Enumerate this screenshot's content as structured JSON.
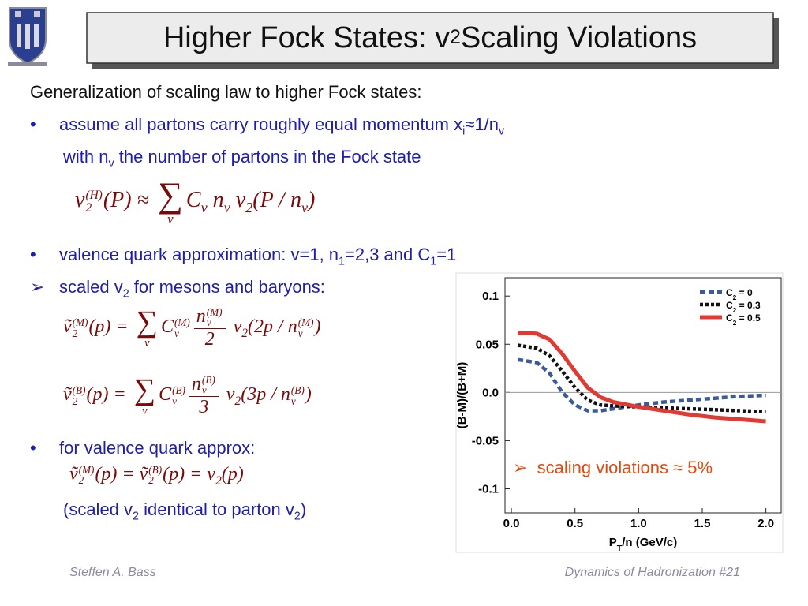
{
  "title": [
    "Higher Fock States: v",
    {
      "sub": "2"
    },
    " Scaling Violations"
  ],
  "body": {
    "intro": [
      "Generalization of scaling law to higher Fock states:"
    ],
    "bullet1": {
      "marker": "•",
      "text": [
        "assume all partons carry roughly equal momentum x",
        {
          "sub": "i"
        },
        "≈1/n",
        {
          "sub": "v"
        }
      ]
    },
    "bullet1b": [
      "with n",
      {
        "sub": "v"
      },
      " the number of partons in the Fock state"
    ],
    "eq1": [
      "v",
      {
        "sup": "(H)",
        "sub": "2"
      },
      "(P) ≈ ",
      {
        "op": "∑",
        "under": "ν"
      },
      "C",
      {
        "sub": "ν"
      },
      " n",
      {
        "sub": "ν"
      },
      " v",
      {
        "sub": "2"
      },
      "(P / n",
      {
        "sub": "ν"
      },
      ")"
    ],
    "bullet2": {
      "marker": "•",
      "text": [
        "valence quark approximation: v=1, n",
        {
          "sub": "1"
        },
        "=2,3 and C",
        {
          "sub": "1"
        },
        "=1"
      ]
    },
    "bullet3": {
      "marker": "➢",
      "text": [
        "scaled v",
        {
          "sub": "2"
        },
        " for mesons and baryons:"
      ]
    },
    "eq2": [
      "ṽ",
      {
        "sup": "(M)",
        "sub": "2"
      },
      "(p) = ",
      {
        "op": "∑",
        "under": "ν"
      },
      "C",
      {
        "sup": "(M)",
        "sub": "ν"
      },
      {
        "num": [
          "n",
          {
            "sup": "(M)",
            "sub": "ν"
          }
        ],
        "den": [
          "2"
        ]
      },
      " v",
      {
        "sub": "2"
      },
      "(2p / n",
      {
        "sup": "(M)",
        "sub": "ν"
      },
      ")"
    ],
    "eq3": [
      "ṽ",
      {
        "sup": "(B)",
        "sub": "2"
      },
      "(p) = ",
      {
        "op": "∑",
        "under": "ν"
      },
      "C",
      {
        "sup": "(B)",
        "sub": "ν"
      },
      {
        "num": [
          "n",
          {
            "sup": "(B)",
            "sub": "ν"
          }
        ],
        "den": [
          "3"
        ]
      },
      " v",
      {
        "sub": "2"
      },
      "(3p / n",
      {
        "sup": "(B)",
        "sub": "ν"
      },
      ")"
    ],
    "bullet4": {
      "marker": "•",
      "text": [
        "for valence quark approx:"
      ]
    },
    "eq4": [
      "ṽ",
      {
        "sup": "(M)",
        "sub": "2"
      },
      "(p) = ṽ",
      {
        "sup": "(B)",
        "sub": "2"
      },
      "(p) = v",
      {
        "sub": "2"
      },
      "(p)"
    ],
    "note": [
      "(scaled v",
      {
        "sub": "2"
      },
      " identical to parton v",
      {
        "sub": "2"
      },
      ")"
    ]
  },
  "footer": {
    "author": "Steffen A. Bass",
    "course": "Dynamics of Hadronization  #21"
  },
  "chart_data": {
    "type": "line",
    "x_label": [
      "P",
      {
        "sub": "T"
      },
      "/n (GeV/c)"
    ],
    "y_label": "(B-M)/(B+M)",
    "x": [
      0.05,
      0.2,
      0.3,
      0.4,
      0.5,
      0.6,
      0.7,
      0.8,
      1.0,
      1.2,
      1.4,
      1.6,
      1.8,
      2.0
    ],
    "series": [
      {
        "name": [
          "C",
          {
            "sub": "2"
          },
          " = 0"
        ],
        "color": "#3a5a9c",
        "style": "dashed",
        "values": [
          0.034,
          0.031,
          0.02,
          0.0,
          -0.013,
          -0.019,
          -0.019,
          -0.017,
          -0.013,
          -0.01,
          -0.008,
          -0.006,
          -0.004,
          -0.003
        ]
      },
      {
        "name": [
          "C",
          {
            "sub": "2"
          },
          " = 0.3"
        ],
        "color": "#111111",
        "style": "dotted",
        "values": [
          0.049,
          0.046,
          0.038,
          0.022,
          0.005,
          -0.008,
          -0.013,
          -0.014,
          -0.015,
          -0.016,
          -0.017,
          -0.018,
          -0.019,
          -0.02
        ]
      },
      {
        "name": [
          "C",
          {
            "sub": "2"
          },
          " = 0.5"
        ],
        "color": "#e03a33",
        "style": "solid",
        "values": [
          0.062,
          0.061,
          0.055,
          0.04,
          0.022,
          0.005,
          -0.005,
          -0.01,
          -0.015,
          -0.019,
          -0.023,
          -0.026,
          -0.028,
          -0.03
        ]
      }
    ],
    "xlim": [
      -0.05,
      2.12
    ],
    "ylim": [
      -0.125,
      0.119
    ],
    "xticks": [
      {
        "value": 0,
        "label": "0.0"
      },
      {
        "value": 0.5,
        "label": "0.5"
      },
      {
        "value": 1,
        "label": "1.0"
      },
      {
        "value": 1.5,
        "label": "1.5"
      },
      {
        "value": 2,
        "label": "2.0"
      }
    ],
    "yticks": [
      0.1,
      0.05,
      {
        "value": 0,
        "label": "0.0"
      },
      -0.05,
      -0.1
    ],
    "legend": "upper right",
    "annotation": {
      "marker": "➢",
      "text": "scaling violations ≈ 5%",
      "color": "#e04a10"
    }
  }
}
